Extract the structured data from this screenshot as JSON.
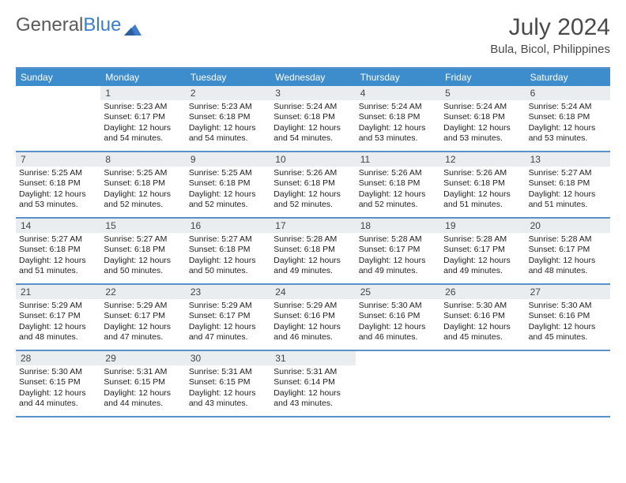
{
  "logo": {
    "text1": "General",
    "text2": "Blue"
  },
  "title": "July 2024",
  "subtitle": "Bula, Bicol, Philippines",
  "colors": {
    "header_bg": "#3d8ccc",
    "header_text": "#ffffff",
    "border": "#5b92cc",
    "daynum_bg": "#e9edef",
    "daynum_text": "#444444",
    "body_text": "#222222",
    "title_text": "#4a4a4a",
    "logo_gray": "#5a5a5a",
    "logo_blue": "#3d7cc9",
    "page_bg": "#ffffff"
  },
  "day_headers": [
    "Sunday",
    "Monday",
    "Tuesday",
    "Wednesday",
    "Thursday",
    "Friday",
    "Saturday"
  ],
  "weeks": [
    {
      "cells": [
        {
          "empty": true
        },
        {
          "day": "1",
          "sunrise": "Sunrise: 5:23 AM",
          "sunset": "Sunset: 6:17 PM",
          "daylight1": "Daylight: 12 hours",
          "daylight2": "and 54 minutes."
        },
        {
          "day": "2",
          "sunrise": "Sunrise: 5:23 AM",
          "sunset": "Sunset: 6:18 PM",
          "daylight1": "Daylight: 12 hours",
          "daylight2": "and 54 minutes."
        },
        {
          "day": "3",
          "sunrise": "Sunrise: 5:24 AM",
          "sunset": "Sunset: 6:18 PM",
          "daylight1": "Daylight: 12 hours",
          "daylight2": "and 54 minutes."
        },
        {
          "day": "4",
          "sunrise": "Sunrise: 5:24 AM",
          "sunset": "Sunset: 6:18 PM",
          "daylight1": "Daylight: 12 hours",
          "daylight2": "and 53 minutes."
        },
        {
          "day": "5",
          "sunrise": "Sunrise: 5:24 AM",
          "sunset": "Sunset: 6:18 PM",
          "daylight1": "Daylight: 12 hours",
          "daylight2": "and 53 minutes."
        },
        {
          "day": "6",
          "sunrise": "Sunrise: 5:24 AM",
          "sunset": "Sunset: 6:18 PM",
          "daylight1": "Daylight: 12 hours",
          "daylight2": "and 53 minutes."
        }
      ]
    },
    {
      "cells": [
        {
          "day": "7",
          "sunrise": "Sunrise: 5:25 AM",
          "sunset": "Sunset: 6:18 PM",
          "daylight1": "Daylight: 12 hours",
          "daylight2": "and 53 minutes."
        },
        {
          "day": "8",
          "sunrise": "Sunrise: 5:25 AM",
          "sunset": "Sunset: 6:18 PM",
          "daylight1": "Daylight: 12 hours",
          "daylight2": "and 52 minutes."
        },
        {
          "day": "9",
          "sunrise": "Sunrise: 5:25 AM",
          "sunset": "Sunset: 6:18 PM",
          "daylight1": "Daylight: 12 hours",
          "daylight2": "and 52 minutes."
        },
        {
          "day": "10",
          "sunrise": "Sunrise: 5:26 AM",
          "sunset": "Sunset: 6:18 PM",
          "daylight1": "Daylight: 12 hours",
          "daylight2": "and 52 minutes."
        },
        {
          "day": "11",
          "sunrise": "Sunrise: 5:26 AM",
          "sunset": "Sunset: 6:18 PM",
          "daylight1": "Daylight: 12 hours",
          "daylight2": "and 52 minutes."
        },
        {
          "day": "12",
          "sunrise": "Sunrise: 5:26 AM",
          "sunset": "Sunset: 6:18 PM",
          "daylight1": "Daylight: 12 hours",
          "daylight2": "and 51 minutes."
        },
        {
          "day": "13",
          "sunrise": "Sunrise: 5:27 AM",
          "sunset": "Sunset: 6:18 PM",
          "daylight1": "Daylight: 12 hours",
          "daylight2": "and 51 minutes."
        }
      ]
    },
    {
      "cells": [
        {
          "day": "14",
          "sunrise": "Sunrise: 5:27 AM",
          "sunset": "Sunset: 6:18 PM",
          "daylight1": "Daylight: 12 hours",
          "daylight2": "and 51 minutes."
        },
        {
          "day": "15",
          "sunrise": "Sunrise: 5:27 AM",
          "sunset": "Sunset: 6:18 PM",
          "daylight1": "Daylight: 12 hours",
          "daylight2": "and 50 minutes."
        },
        {
          "day": "16",
          "sunrise": "Sunrise: 5:27 AM",
          "sunset": "Sunset: 6:18 PM",
          "daylight1": "Daylight: 12 hours",
          "daylight2": "and 50 minutes."
        },
        {
          "day": "17",
          "sunrise": "Sunrise: 5:28 AM",
          "sunset": "Sunset: 6:18 PM",
          "daylight1": "Daylight: 12 hours",
          "daylight2": "and 49 minutes."
        },
        {
          "day": "18",
          "sunrise": "Sunrise: 5:28 AM",
          "sunset": "Sunset: 6:17 PM",
          "daylight1": "Daylight: 12 hours",
          "daylight2": "and 49 minutes."
        },
        {
          "day": "19",
          "sunrise": "Sunrise: 5:28 AM",
          "sunset": "Sunset: 6:17 PM",
          "daylight1": "Daylight: 12 hours",
          "daylight2": "and 49 minutes."
        },
        {
          "day": "20",
          "sunrise": "Sunrise: 5:28 AM",
          "sunset": "Sunset: 6:17 PM",
          "daylight1": "Daylight: 12 hours",
          "daylight2": "and 48 minutes."
        }
      ]
    },
    {
      "cells": [
        {
          "day": "21",
          "sunrise": "Sunrise: 5:29 AM",
          "sunset": "Sunset: 6:17 PM",
          "daylight1": "Daylight: 12 hours",
          "daylight2": "and 48 minutes."
        },
        {
          "day": "22",
          "sunrise": "Sunrise: 5:29 AM",
          "sunset": "Sunset: 6:17 PM",
          "daylight1": "Daylight: 12 hours",
          "daylight2": "and 47 minutes."
        },
        {
          "day": "23",
          "sunrise": "Sunrise: 5:29 AM",
          "sunset": "Sunset: 6:17 PM",
          "daylight1": "Daylight: 12 hours",
          "daylight2": "and 47 minutes."
        },
        {
          "day": "24",
          "sunrise": "Sunrise: 5:29 AM",
          "sunset": "Sunset: 6:16 PM",
          "daylight1": "Daylight: 12 hours",
          "daylight2": "and 46 minutes."
        },
        {
          "day": "25",
          "sunrise": "Sunrise: 5:30 AM",
          "sunset": "Sunset: 6:16 PM",
          "daylight1": "Daylight: 12 hours",
          "daylight2": "and 46 minutes."
        },
        {
          "day": "26",
          "sunrise": "Sunrise: 5:30 AM",
          "sunset": "Sunset: 6:16 PM",
          "daylight1": "Daylight: 12 hours",
          "daylight2": "and 45 minutes."
        },
        {
          "day": "27",
          "sunrise": "Sunrise: 5:30 AM",
          "sunset": "Sunset: 6:16 PM",
          "daylight1": "Daylight: 12 hours",
          "daylight2": "and 45 minutes."
        }
      ]
    },
    {
      "cells": [
        {
          "day": "28",
          "sunrise": "Sunrise: 5:30 AM",
          "sunset": "Sunset: 6:15 PM",
          "daylight1": "Daylight: 12 hours",
          "daylight2": "and 44 minutes."
        },
        {
          "day": "29",
          "sunrise": "Sunrise: 5:31 AM",
          "sunset": "Sunset: 6:15 PM",
          "daylight1": "Daylight: 12 hours",
          "daylight2": "and 44 minutes."
        },
        {
          "day": "30",
          "sunrise": "Sunrise: 5:31 AM",
          "sunset": "Sunset: 6:15 PM",
          "daylight1": "Daylight: 12 hours",
          "daylight2": "and 43 minutes."
        },
        {
          "day": "31",
          "sunrise": "Sunrise: 5:31 AM",
          "sunset": "Sunset: 6:14 PM",
          "daylight1": "Daylight: 12 hours",
          "daylight2": "and 43 minutes."
        },
        {
          "empty": true
        },
        {
          "empty": true
        },
        {
          "empty": true
        }
      ]
    }
  ]
}
